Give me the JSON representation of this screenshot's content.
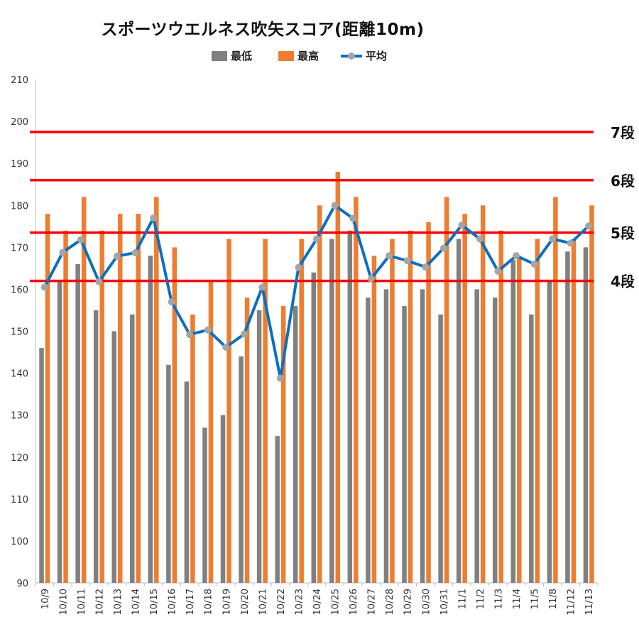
{
  "chart_data": {
    "type": "bar",
    "title": "スポーツウエルネス吹矢スコア(距離10m)",
    "xlabel": "",
    "ylabel": "",
    "ylim": [
      90,
      210
    ],
    "yticks": [
      90,
      100,
      110,
      120,
      130,
      140,
      150,
      160,
      170,
      180,
      190,
      200,
      210
    ],
    "grid": false,
    "legend_position": "top",
    "categories": [
      "10/9",
      "10/10",
      "10/11",
      "10/12",
      "10/13",
      "10/14",
      "10/15",
      "10/16",
      "10/17",
      "10/18",
      "10/19",
      "10/20",
      "10/21",
      "10/22",
      "10/23",
      "10/24",
      "10/25",
      "10/26",
      "10/27",
      "10/28",
      "10/29",
      "10/30",
      "10/31",
      "11/1",
      "11/2",
      "11/3",
      "11/4",
      "11/5",
      "11/8",
      "11/12",
      "11/13"
    ],
    "series": [
      {
        "name": "最低",
        "type": "bar",
        "color": "#808080",
        "values": [
          146,
          162,
          166,
          155,
          150,
          154,
          168,
          142,
          138,
          127,
          130,
          144,
          155,
          125,
          156,
          164,
          172,
          174,
          158,
          160,
          156,
          160,
          154,
          172,
          160,
          158,
          167,
          154,
          162,
          169,
          170
        ]
      },
      {
        "name": "最高",
        "type": "bar",
        "color": "#ed7d31",
        "values": [
          178,
          174,
          182,
          174,
          178,
          178,
          182,
          170,
          154,
          162,
          172,
          158,
          172,
          156,
          172,
          180,
          188,
          182,
          168,
          172,
          174,
          176,
          182,
          178,
          180,
          174,
          168,
          172,
          182,
          172,
          180
        ]
      },
      {
        "name": "平均",
        "type": "line",
        "color": "#0c6fbf",
        "marker_color": "#a5a5a5",
        "values": [
          160.5,
          168.8,
          171.8,
          161.8,
          167.9,
          168.7,
          177,
          157,
          149.2,
          150.3,
          146.2,
          149.3,
          160.5,
          138.8,
          165.2,
          172,
          180,
          176.9,
          162.5,
          168,
          166.8,
          165.3,
          169.8,
          175.3,
          172,
          164.3,
          168,
          166,
          172,
          171,
          175.1
        ]
      }
    ],
    "reference_lines": [
      {
        "label": "7段",
        "value": 197.5,
        "color": "#ff0000"
      },
      {
        "label": "6段",
        "value": 186,
        "color": "#ff0000"
      },
      {
        "label": "5段",
        "value": 173.5,
        "color": "#ff0000"
      },
      {
        "label": "4段",
        "value": 162,
        "color": "#ff0000"
      }
    ]
  }
}
